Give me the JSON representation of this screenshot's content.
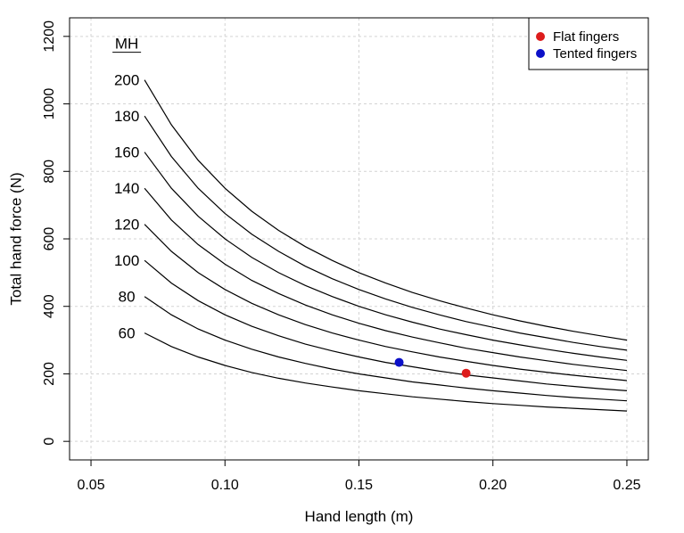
{
  "chart_data": {
    "type": "line",
    "xlabel": "Hand length (m)",
    "ylabel": "Total hand force (N)",
    "xlim": [
      0.042,
      0.258
    ],
    "ylim": [
      -55,
      1255
    ],
    "x_ticks": [
      0.05,
      0.1,
      0.15,
      0.2,
      0.25
    ],
    "x_tick_labels": [
      "0.05",
      "0.10",
      "0.15",
      "0.20",
      "0.25"
    ],
    "y_ticks": [
      0,
      200,
      400,
      600,
      800,
      1000,
      1200
    ],
    "y_tick_labels": [
      "0",
      "200",
      "400",
      "600",
      "800",
      "1000",
      "1200"
    ],
    "grid": true,
    "curve_group_label": "MH",
    "x": [
      0.07,
      0.08,
      0.09,
      0.1,
      0.11,
      0.12,
      0.13,
      0.14,
      0.15,
      0.16,
      0.17,
      0.18,
      0.19,
      0.2,
      0.21,
      0.22,
      0.23,
      0.24,
      0.25
    ],
    "series": [
      {
        "label": "60",
        "values": [
          321,
          281,
          250,
          225,
          204,
          187,
          173,
          161,
          150,
          141,
          132,
          125,
          118,
          112,
          107,
          102,
          98,
          94,
          90
        ]
      },
      {
        "label": "80",
        "values": [
          429,
          375,
          333,
          300,
          273,
          250,
          231,
          214,
          200,
          188,
          176,
          167,
          158,
          150,
          143,
          136,
          130,
          125,
          120
        ]
      },
      {
        "label": "100",
        "values": [
          536,
          469,
          417,
          375,
          341,
          313,
          288,
          268,
          250,
          234,
          221,
          208,
          197,
          188,
          179,
          170,
          163,
          156,
          150
        ]
      },
      {
        "label": "120",
        "values": [
          643,
          563,
          500,
          450,
          409,
          375,
          346,
          321,
          300,
          281,
          265,
          250,
          237,
          225,
          214,
          205,
          196,
          188,
          180
        ]
      },
      {
        "label": "140",
        "values": [
          750,
          656,
          583,
          525,
          477,
          438,
          404,
          375,
          350,
          328,
          309,
          292,
          276,
          263,
          250,
          239,
          228,
          219,
          210
        ]
      },
      {
        "label": "160",
        "values": [
          857,
          750,
          667,
          600,
          545,
          500,
          462,
          429,
          400,
          375,
          353,
          333,
          316,
          300,
          286,
          273,
          261,
          250,
          240
        ]
      },
      {
        "label": "180",
        "values": [
          964,
          844,
          750,
          675,
          614,
          563,
          519,
          482,
          450,
          422,
          397,
          375,
          355,
          338,
          321,
          307,
          293,
          281,
          270
        ]
      },
      {
        "label": "200",
        "values": [
          1071,
          938,
          833,
          750,
          682,
          625,
          577,
          536,
          500,
          469,
          441,
          417,
          395,
          375,
          357,
          341,
          326,
          313,
          300
        ]
      }
    ],
    "points": [
      {
        "name": "Flat fingers",
        "x": 0.19,
        "y": 202,
        "color": "#dd1c1c"
      },
      {
        "name": "Tented fingers",
        "x": 0.165,
        "y": 234,
        "color": "#0c10c8"
      }
    ],
    "legend": {
      "position": "top-right",
      "entries": [
        {
          "label": "Flat fingers",
          "color": "#dd1c1c"
        },
        {
          "label": "Tented fingers",
          "color": "#0c10c8"
        }
      ]
    }
  }
}
